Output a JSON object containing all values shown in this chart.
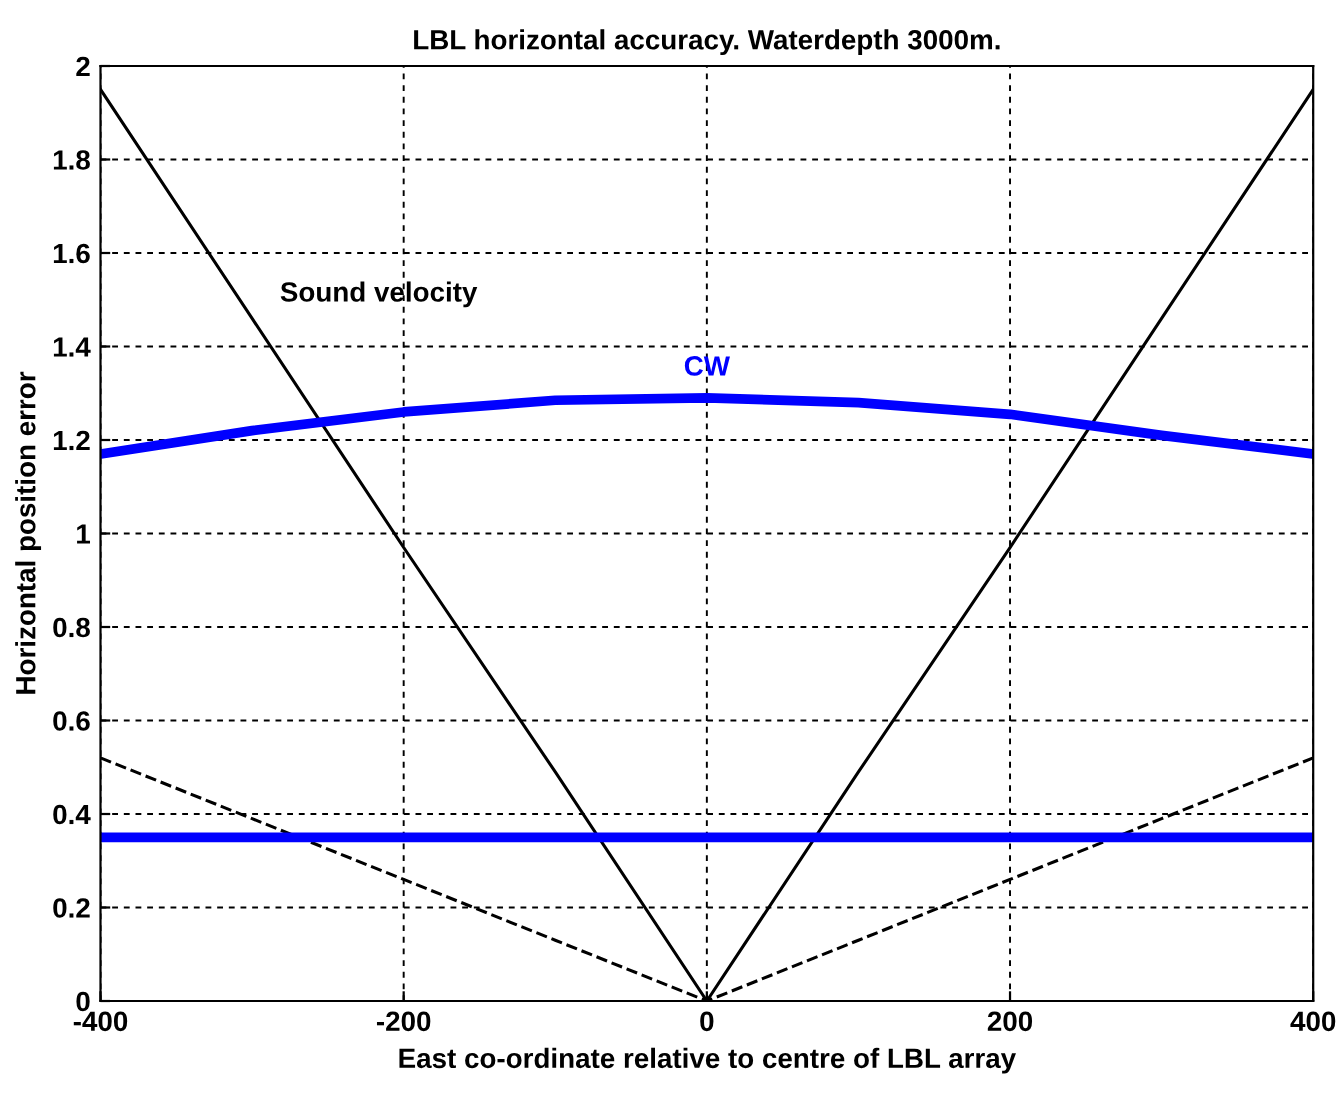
{
  "chart_data": {
    "type": "line",
    "title": "LBL horizontal accuracy. Waterdepth 3000m.",
    "xlabel": "East co-ordinate relative to centre of LBL array",
    "ylabel": "Horizontal position error",
    "x": [
      -400,
      -300,
      -200,
      -100,
      0,
      100,
      200,
      300,
      400
    ],
    "series": [
      {
        "name": "Sound velocity",
        "color": "#000000",
        "values": [
          1.95,
          1.46,
          0.97,
          0.49,
          0,
          0.49,
          0.97,
          1.46,
          1.95
        ],
        "line_style": "solid"
      },
      {
        "color": "#000000",
        "values": [
          0.52,
          0.39,
          0.26,
          0.13,
          0,
          0.13,
          0.26,
          0.39,
          0.52
        ],
        "line_style": "dashed"
      },
      {
        "name": "CW",
        "color": "#0000ff",
        "values": [
          1.17,
          1.22,
          1.26,
          1.285,
          1.29,
          1.28,
          1.255,
          1.21,
          1.17
        ],
        "line_style": "solid"
      },
      {
        "color": "#0000ff",
        "values": [
          0.35,
          0.35,
          0.35,
          0.35,
          0.35,
          0.35,
          0.35,
          0.35,
          0.35
        ],
        "line_style": "solid"
      }
    ],
    "xlim": [
      -400,
      400
    ],
    "ylim": [
      0,
      2
    ],
    "xticks": [
      -400,
      -200,
      0,
      200,
      400
    ],
    "yticks": [
      0,
      0.2,
      0.4,
      0.6,
      0.8,
      1,
      1.2,
      1.4,
      1.6,
      1.8,
      2
    ],
    "grid": true,
    "legend": false,
    "marker": "none"
  }
}
